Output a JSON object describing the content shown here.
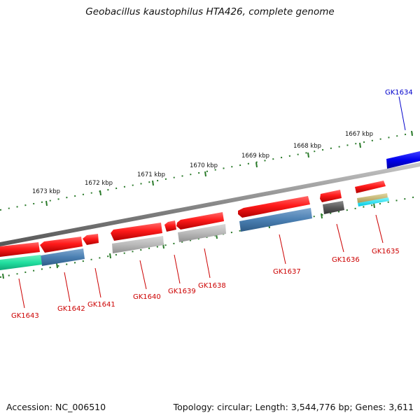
{
  "title": "Geobacillus kaustophilus HTA426, complete genome",
  "accession": "Accession: NC_006510",
  "topology": "Topology: circular; Length: 3,544,776 bp; Genes: 3,611",
  "colors": {
    "backbone": "#8a8a8a",
    "ticks": "#2a7a2a",
    "label_red": "#cc0000",
    "label_blue": "#0000cc"
  },
  "kbp_labels": [
    "1667 kbp",
    "1668 kbp",
    "1669 kbp",
    "1670 kbp",
    "1671 kbp",
    "1672 kbp",
    "1673 kbp"
  ],
  "genes": [
    {
      "id": "GK1634",
      "label": "GK1634",
      "color": "blue"
    },
    {
      "id": "GK1635",
      "label": "GK1635",
      "color": "red"
    },
    {
      "id": "GK1636",
      "label": "GK1636",
      "color": "red"
    },
    {
      "id": "GK1637",
      "label": "GK1637",
      "color": "red"
    },
    {
      "id": "GK1638",
      "label": "GK1638",
      "color": "red"
    },
    {
      "id": "GK1639",
      "label": "GK1639",
      "color": "red"
    },
    {
      "id": "GK1640",
      "label": "GK1640",
      "color": "red"
    },
    {
      "id": "GK1641",
      "label": "GK1641",
      "color": "red"
    },
    {
      "id": "GK1642",
      "label": "GK1642",
      "color": "red"
    },
    {
      "id": "GK1643",
      "label": "GK1643",
      "color": "red"
    }
  ]
}
